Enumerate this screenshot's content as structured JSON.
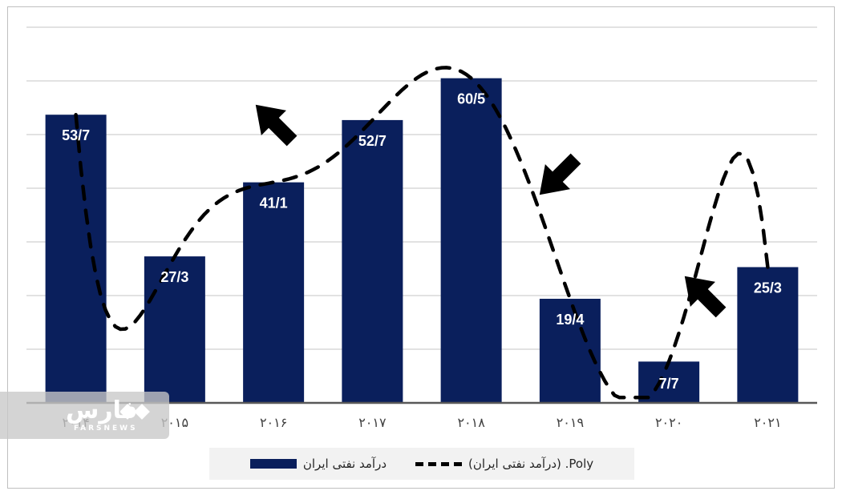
{
  "chart_data": {
    "type": "bar",
    "categories": [
      "۲۰۱۴",
      "۲۰۱۵",
      "۲۰۱۶",
      "۲۰۱۷",
      "۲۰۱۸",
      "۲۰۱۹",
      "۲۰۲۰",
      "۲۰۲۱"
    ],
    "series": [
      {
        "name": "درآمد نفتی ایران",
        "values": [
          53.7,
          27.3,
          41.1,
          52.7,
          60.5,
          19.4,
          7.7,
          25.3
        ],
        "labels": [
          "53/7",
          "27/3",
          "41/1",
          "52/7",
          "60/5",
          "19/4",
          "7/7",
          "25/3"
        ]
      }
    ],
    "trendline": {
      "name": "Poly. (درآمد نفتی ایران)",
      "type": "polynomial",
      "style": "dashed"
    },
    "trend_arrows": [
      "up",
      "down",
      "up"
    ],
    "ylim": [
      0,
      70
    ],
    "grid": true,
    "legend_position": "bottom",
    "colors": {
      "bar": "#0a1f5c",
      "trend": "#000000",
      "grid": "#d9d9d9",
      "axis": "#595959"
    }
  },
  "legend": {
    "bar_label": "درآمد نفتی ایران",
    "trend_label": "Poly. (درآمد نفتی ایران)"
  },
  "watermark": {
    "brand": "فارس",
    "sub": "FARSNEWS"
  }
}
